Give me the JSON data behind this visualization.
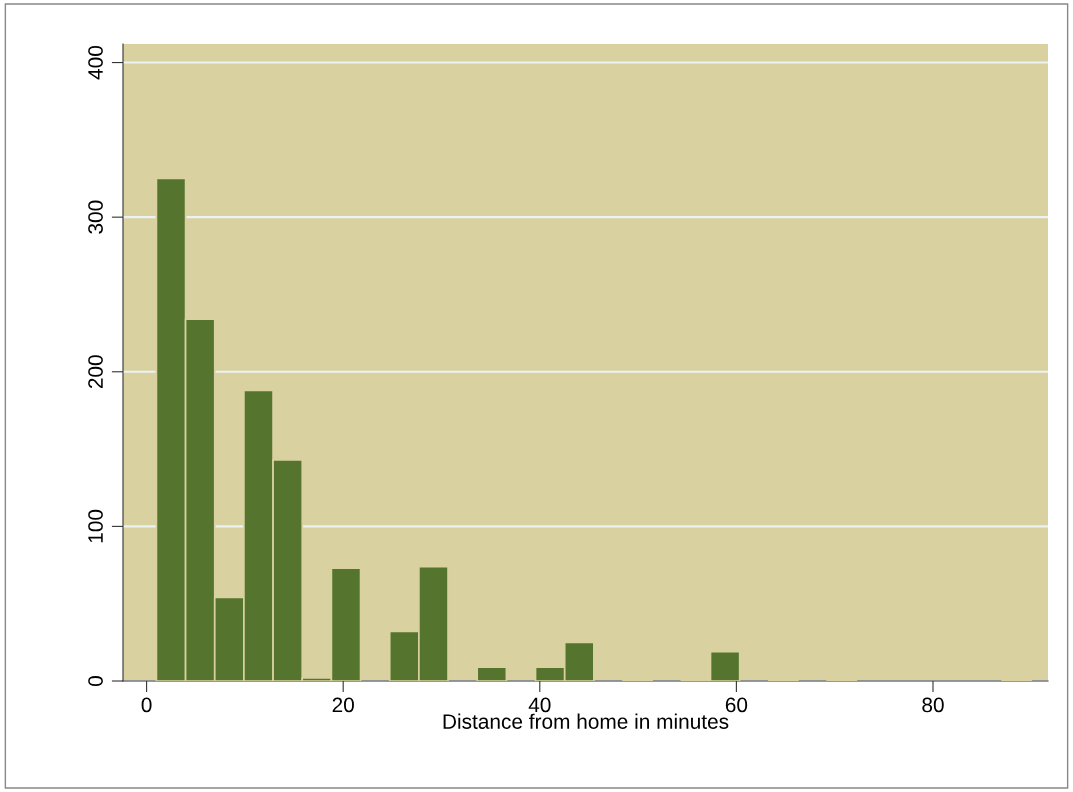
{
  "chart_data": {
    "type": "histogram",
    "xlabel": "Distance from home in minutes",
    "bins": [
      1,
      3.967,
      6.933,
      9.9,
      12.867,
      15.833,
      18.8,
      21.767,
      24.733,
      27.7,
      30.667,
      33.633,
      36.6,
      39.567,
      42.533,
      45.5,
      48.467,
      51.433,
      54.4,
      57.367,
      60.333,
      63.3,
      66.267,
      69.233,
      72.2,
      75.167,
      78.133,
      81.1,
      84.067,
      87.033,
      90
    ],
    "values": [
      325,
      234,
      54,
      188,
      143,
      2,
      73,
      0,
      32,
      74,
      0,
      9,
      0,
      9,
      25,
      0,
      1,
      0,
      0.5,
      19,
      0,
      0.5,
      0,
      0.5,
      0,
      0,
      0,
      0,
      0,
      0.5
    ],
    "color": "#55752f",
    "xlim": [
      -2.4,
      91.7
    ],
    "ylim": [
      0,
      412
    ],
    "xticks": [
      0,
      20,
      40,
      60,
      80
    ],
    "yticks": [
      0,
      100,
      200,
      300,
      400
    ],
    "grid": "y"
  }
}
